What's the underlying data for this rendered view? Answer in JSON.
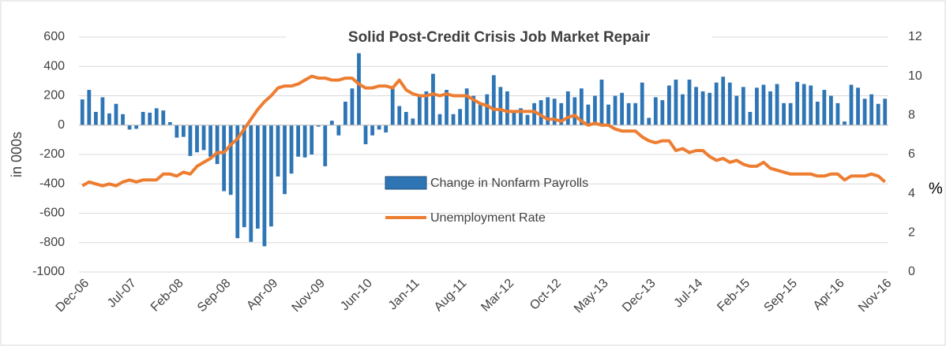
{
  "chart_data": {
    "type": "bar_line",
    "title": "Solid Post-Credit Crisis Job Market Repair",
    "y_label": "in 000s",
    "y2_label": "%",
    "categories": [
      "Dec-06",
      null,
      null,
      null,
      null,
      null,
      null,
      "Jul-07",
      null,
      null,
      null,
      null,
      null,
      null,
      "Feb-08",
      null,
      null,
      null,
      null,
      null,
      null,
      "Sep-08",
      null,
      null,
      null,
      null,
      null,
      null,
      "Apr-09",
      null,
      null,
      null,
      null,
      null,
      null,
      "Nov-09",
      null,
      null,
      null,
      null,
      null,
      null,
      "Jun-10",
      null,
      null,
      null,
      null,
      null,
      null,
      "Jan-11",
      null,
      null,
      null,
      null,
      null,
      null,
      "Aug-11",
      null,
      null,
      null,
      null,
      null,
      null,
      "Mar-12",
      null,
      null,
      null,
      null,
      null,
      null,
      "Oct-12",
      null,
      null,
      null,
      null,
      null,
      null,
      "May-13",
      null,
      null,
      null,
      null,
      null,
      null,
      "Dec-13",
      null,
      null,
      null,
      null,
      null,
      null,
      "Jul-14",
      null,
      null,
      null,
      null,
      null,
      null,
      "Feb-15",
      null,
      null,
      null,
      null,
      null,
      null,
      "Sep-15",
      null,
      null,
      null,
      null,
      null,
      null,
      "Apr-16",
      null,
      null,
      null,
      null,
      null,
      null,
      "Nov-16"
    ],
    "series": [
      {
        "name": "Change in Nonfarm Payrolls",
        "color": "#2e75b6",
        "axis": "y",
        "values": [
          175,
          240,
          90,
          190,
          80,
          145,
          75,
          -30,
          -25,
          90,
          85,
          115,
          100,
          20,
          -85,
          -80,
          -210,
          -185,
          -170,
          -215,
          -265,
          -450,
          -475,
          -770,
          -695,
          -795,
          -705,
          -825,
          -690,
          -350,
          -470,
          -330,
          -215,
          -220,
          -200,
          -10,
          -280,
          30,
          -70,
          160,
          250,
          490,
          -130,
          -70,
          -30,
          -50,
          250,
          130,
          90,
          45,
          210,
          230,
          350,
          75,
          240,
          75,
          110,
          250,
          200,
          140,
          210,
          340,
          260,
          230,
          90,
          115,
          70,
          150,
          170,
          190,
          180,
          150,
          230,
          190,
          250,
          140,
          200,
          310,
          140,
          200,
          220,
          150,
          150,
          290,
          50,
          190,
          170,
          270,
          310,
          210,
          310,
          260,
          230,
          220,
          290,
          330,
          290,
          200,
          260,
          90,
          255,
          275,
          230,
          280,
          150,
          150,
          295,
          280,
          270,
          160,
          240,
          200,
          150,
          25,
          275,
          255,
          180,
          210,
          145,
          180
        ]
      },
      {
        "name": "Unemployment Rate",
        "color": "#ed7d31",
        "axis": "y2",
        "values": [
          4.4,
          4.6,
          4.5,
          4.4,
          4.5,
          4.4,
          4.6,
          4.7,
          4.6,
          4.7,
          4.7,
          4.7,
          5.0,
          5.0,
          4.9,
          5.1,
          5.0,
          5.4,
          5.6,
          5.8,
          6.1,
          6.1,
          6.5,
          6.8,
          7.3,
          7.8,
          8.3,
          8.7,
          9.0,
          9.4,
          9.5,
          9.5,
          9.6,
          9.8,
          10.0,
          9.9,
          9.9,
          9.8,
          9.8,
          9.9,
          9.9,
          9.6,
          9.4,
          9.4,
          9.5,
          9.5,
          9.4,
          9.8,
          9.3,
          9.1,
          9.0,
          9.0,
          9.1,
          9.0,
          9.1,
          9.0,
          9.0,
          9.0,
          8.8,
          8.6,
          8.5,
          8.3,
          8.3,
          8.2,
          8.2,
          8.2,
          8.2,
          8.2,
          8.0,
          7.8,
          7.8,
          7.7,
          7.9,
          8.0,
          7.7,
          7.5,
          7.6,
          7.5,
          7.5,
          7.3,
          7.2,
          7.2,
          7.2,
          6.9,
          6.7,
          6.6,
          6.7,
          6.7,
          6.2,
          6.3,
          6.1,
          6.2,
          6.2,
          5.9,
          5.7,
          5.8,
          5.6,
          5.7,
          5.5,
          5.4,
          5.4,
          5.6,
          5.3,
          5.2,
          5.1,
          5.0,
          5.0,
          5.0,
          5.0,
          4.9,
          4.9,
          5.0,
          5.0,
          4.7,
          4.9,
          4.9,
          4.9,
          5.0,
          4.9,
          4.6
        ]
      }
    ],
    "ylim": [
      -1000,
      600
    ],
    "yticks": [
      -1000,
      -800,
      -600,
      -400,
      -200,
      0,
      200,
      400,
      600
    ],
    "y2lim": [
      0,
      12
    ],
    "y2ticks": [
      0,
      2,
      4,
      6,
      8,
      10,
      12
    ],
    "grid": true
  }
}
